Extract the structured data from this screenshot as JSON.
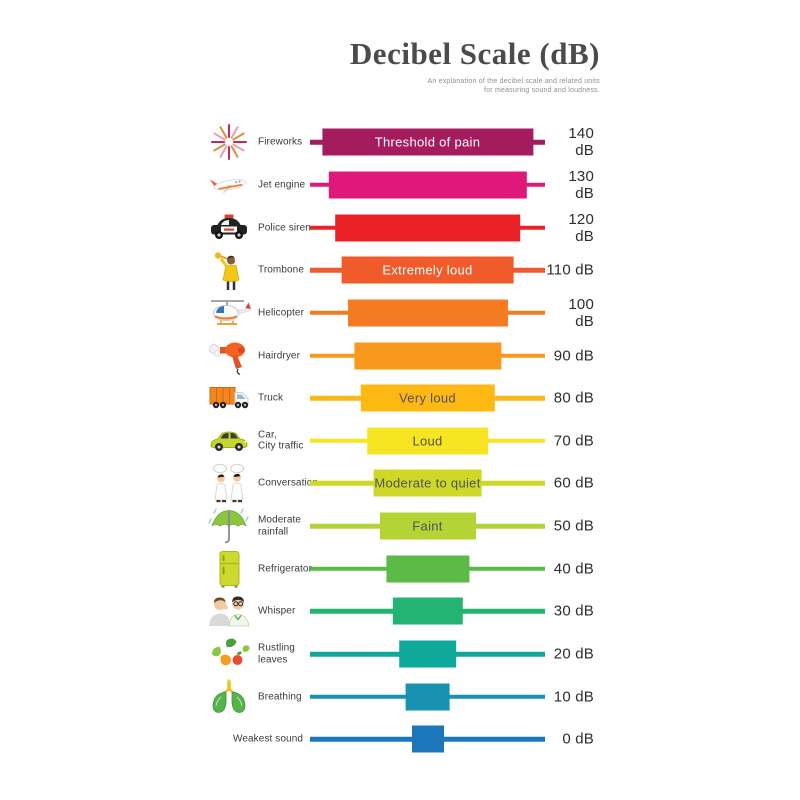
{
  "header": {
    "title": "Decibel Scale (dB)",
    "subtitle_line1": "An explanation of the decibel scale and related units",
    "subtitle_line2": "for measuring sound and loudness."
  },
  "chart_data": {
    "type": "bar",
    "orientation": "horizontal-centered",
    "title": "Decibel Scale (dB)",
    "unit": "dB",
    "value_range": [
      0,
      140
    ],
    "tick_step": 10,
    "legend_position": "none",
    "grid": false,
    "rows": [
      {
        "label": "Fireworks",
        "icon": "fireworks",
        "db": 140,
        "db_label": "140 dB",
        "bar_text": "Threshold of pain",
        "bar_text_color": "#ffffff",
        "color": "#A41C5D"
      },
      {
        "label": "Jet engine",
        "icon": "jet-engine",
        "db": 130,
        "db_label": "130 dB",
        "bar_text": "",
        "color": "#E0187C"
      },
      {
        "label": "Police siren",
        "icon": "police-car",
        "db": 120,
        "db_label": "120 dB",
        "bar_text": "",
        "color": "#EA2227"
      },
      {
        "label": "Trombone",
        "icon": "trombone-player",
        "db": 110,
        "db_label": "110 dB",
        "bar_text": "Extremely loud",
        "bar_text_color": "#ffffff",
        "color": "#F15B2B"
      },
      {
        "label": "Helicopter",
        "icon": "helicopter",
        "db": 100,
        "db_label": "100 dB",
        "bar_text": "",
        "color": "#F47B21"
      },
      {
        "label": "Hairdryer",
        "icon": "hairdryer",
        "db": 90,
        "db_label": "90 dB",
        "bar_text": "",
        "color": "#F8991D"
      },
      {
        "label": "Truck",
        "icon": "truck",
        "db": 80,
        "db_label": "80 dB",
        "bar_text": "Very loud",
        "bar_text_color": "#535353",
        "color": "#FDB813"
      },
      {
        "label": "Car,\nCity traffic",
        "icon": "car",
        "db": 70,
        "db_label": "70 dB",
        "bar_text": "Loud",
        "bar_text_color": "#535353",
        "color": "#F7E423"
      },
      {
        "label": "Conversation",
        "icon": "conversation",
        "db": 60,
        "db_label": "60 dB",
        "bar_text": "Moderate to quiet",
        "bar_text_color": "#535353",
        "color": "#CFD827"
      },
      {
        "label": "Moderate\nrainfall",
        "icon": "umbrella-rain",
        "db": 50,
        "db_label": "50 dB",
        "bar_text": "Faint",
        "bar_text_color": "#535353",
        "color": "#B4D334"
      },
      {
        "label": "Refrigerator",
        "icon": "refrigerator",
        "db": 40,
        "db_label": "40 dB",
        "bar_text": "",
        "color": "#5CBB47"
      },
      {
        "label": "Whisper",
        "icon": "whisper",
        "db": 30,
        "db_label": "30 dB",
        "bar_text": "",
        "color": "#23B473"
      },
      {
        "label": "Rustling\nleaves",
        "icon": "leaves",
        "db": 20,
        "db_label": "20 dB",
        "bar_text": "",
        "color": "#0FA99C"
      },
      {
        "label": "Breathing",
        "icon": "lungs",
        "db": 10,
        "db_label": "10 dB",
        "bar_text": "",
        "color": "#1792B1"
      },
      {
        "label": "Weakest sound",
        "icon": "none",
        "db": 0,
        "db_label": "0 dB",
        "bar_text": "",
        "color": "#1B76BC"
      }
    ]
  }
}
